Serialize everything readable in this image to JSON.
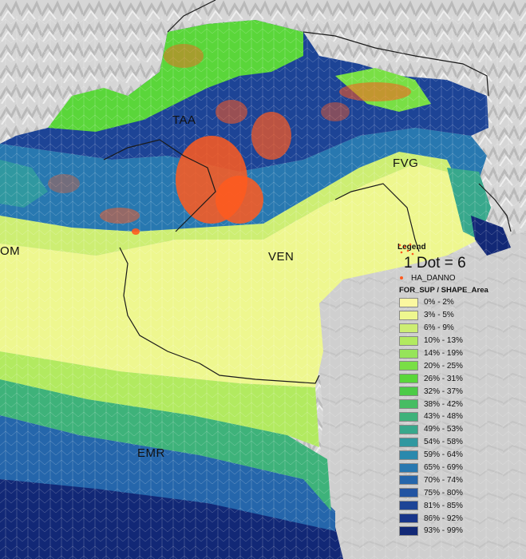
{
  "regions": {
    "taa": "TAA",
    "fvg": "FVG",
    "ven": "VEN",
    "emr": "EMR",
    "lom": "OM"
  },
  "legend": {
    "title": "Legend",
    "dot_density": "1 Dot = 6",
    "dot_field": "HA_DANNO",
    "dot_color": "#ff5a1e",
    "field": "FOR_SUP / SHAPE_Area",
    "classes": [
      {
        "label": "0% - 2%",
        "color": "#fbf7a0"
      },
      {
        "label": "3% - 5%",
        "color": "#eef78f"
      },
      {
        "label": "6% - 9%",
        "color": "#cdee73"
      },
      {
        "label": "10% - 13%",
        "color": "#b2ea60"
      },
      {
        "label": "14% - 19%",
        "color": "#96e45a"
      },
      {
        "label": "20% - 25%",
        "color": "#79df45"
      },
      {
        "label": "26% - 31%",
        "color": "#5ad63a"
      },
      {
        "label": "32% - 37%",
        "color": "#4ccb47"
      },
      {
        "label": "38% - 42%",
        "color": "#47bd63"
      },
      {
        "label": "43% - 48%",
        "color": "#3eb27a"
      },
      {
        "label": "49% - 53%",
        "color": "#38a88c"
      },
      {
        "label": "54% - 58%",
        "color": "#3098a0"
      },
      {
        "label": "59% - 64%",
        "color": "#2a89ad"
      },
      {
        "label": "65% - 69%",
        "color": "#2878b0"
      },
      {
        "label": "70% - 74%",
        "color": "#2566ab"
      },
      {
        "label": "75% - 80%",
        "color": "#2254a2"
      },
      {
        "label": "81% - 85%",
        "color": "#1d4496"
      },
      {
        "label": "86% - 92%",
        "color": "#18358a"
      },
      {
        "label": "93% - 99%",
        "color": "#122876"
      }
    ]
  }
}
